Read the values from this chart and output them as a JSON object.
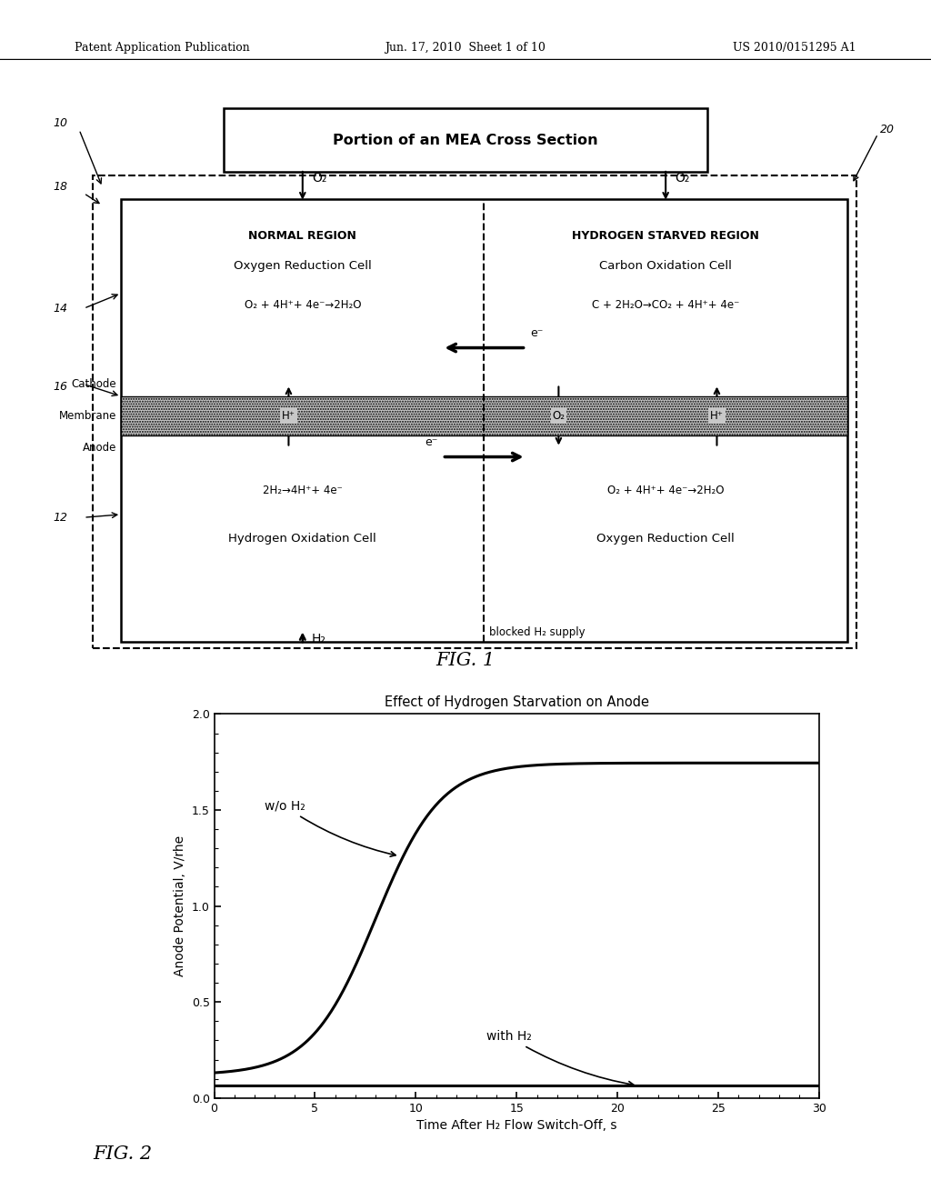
{
  "header_left": "Patent Application Publication",
  "header_mid": "Jun. 17, 2010  Sheet 1 of 10",
  "header_right": "US 2010/0151295 A1",
  "fig1_title": "Portion of an MEA Cross Section",
  "fig1_label": "FIG. 1",
  "fig2_label": "FIG. 2",
  "label_10": "10",
  "label_12": "12",
  "label_14": "14",
  "label_16": "16",
  "label_18": "18",
  "label_20": "20",
  "normal_region": "NORMAL REGION",
  "hydrogen_starved_region": "HYDROGEN STARVED REGION",
  "cathode_label": "Cathode",
  "membrane_label": "Membrane",
  "anode_label": "Anode",
  "cell1_title": "Oxygen Reduction Cell",
  "cell1_eq": "O₂ + 4H⁺+ 4e⁻→2H₂O",
  "cell2_title": "Carbon Oxidation Cell",
  "cell2_eq": "C + 2H₂O→CO₂ + 4H⁺+ 4e⁻",
  "cell3_eq": "2H₂→4H⁺+ 4e⁻",
  "cell3_title": "Hydrogen Oxidation Cell",
  "cell4_eq": "O₂ + 4H⁺+ 4e⁻→2H₂O",
  "cell4_title": "Oxygen Reduction Cell",
  "o2_top_left": "O₂",
  "o2_top_right": "O₂",
  "h2_bottom": "H₂",
  "blocked_h2": "blocked H₂ supply",
  "h_plus_left": "H⁺",
  "o2_mid": "O₂",
  "h_plus_right": "H⁺",
  "e_minus_cathode": "e⁻",
  "e_minus_anode": "e⁻",
  "plot_title": "Effect of Hydrogen Starvation on Anode",
  "plot_xlabel": "Time After H₂ Flow Switch-Off, s",
  "plot_ylabel": "Anode Potential, V/rhe",
  "label_wo_h2": "w/o H₂",
  "label_with_h2": "with H₂",
  "bg_color": "#ffffff",
  "line_color": "#000000",
  "plot_bg": "#ffffff"
}
